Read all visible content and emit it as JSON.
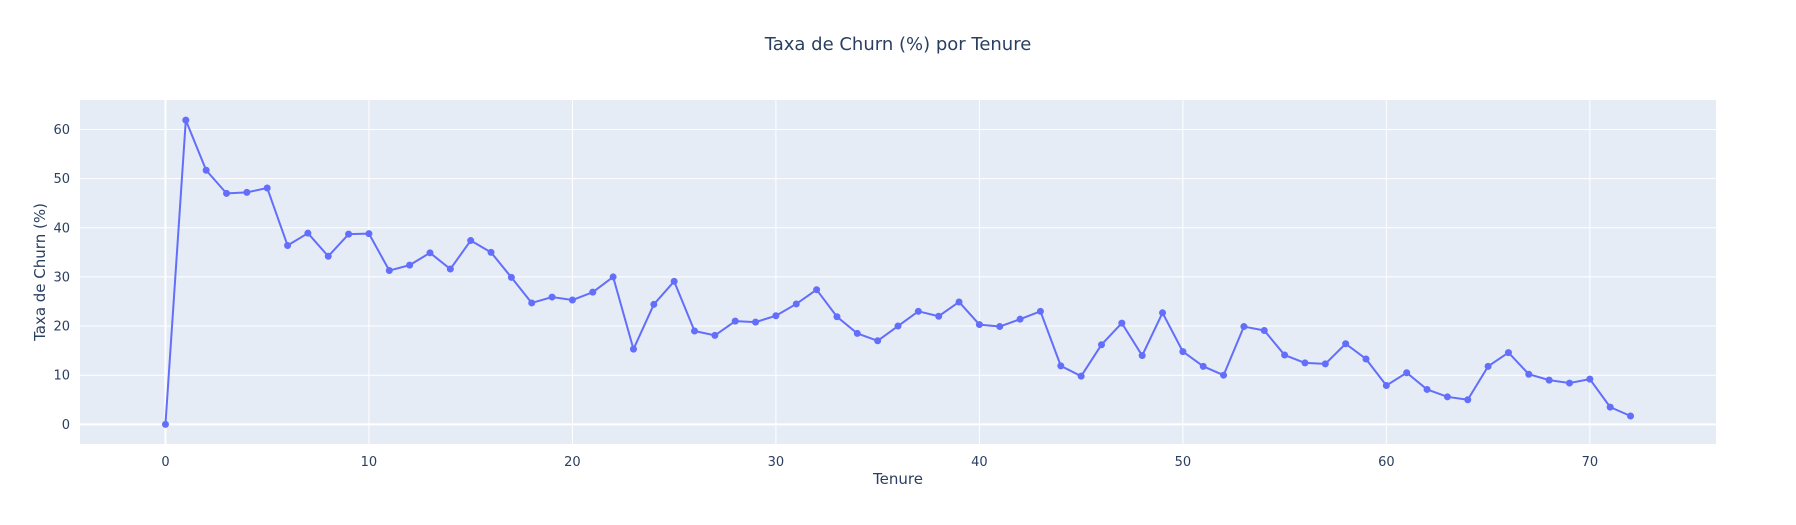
{
  "chart_data": {
    "type": "line",
    "mode": "lines+markers",
    "title": "Taxa de Churn (%) por Tenure",
    "xlabel": "Tenure",
    "ylabel": "Taxa de Churn (%)",
    "xlim": [
      -4.2,
      76.2
    ],
    "ylim": [
      -4,
      66
    ],
    "x_ticks": [
      0,
      10,
      20,
      30,
      40,
      50,
      60,
      70
    ],
    "y_ticks": [
      0,
      10,
      20,
      30,
      40,
      50,
      60
    ],
    "grid": true,
    "legend": "none",
    "colors": {
      "line": "#636efa",
      "plot_bg": "#e5ecf6",
      "grid": "#ffffff",
      "text": "#2a3f5f"
    },
    "series": [
      {
        "x": [
          0,
          1,
          2,
          3,
          4,
          5,
          6,
          7,
          8,
          9,
          10,
          11,
          12,
          13,
          14,
          15,
          16,
          17,
          18,
          19,
          20,
          21,
          22,
          23,
          24,
          25,
          26,
          27,
          28,
          29,
          30,
          31,
          32,
          33,
          34,
          35,
          36,
          37,
          38,
          39,
          40,
          41,
          42,
          43,
          44,
          45,
          46,
          47,
          48,
          49,
          50,
          51,
          52,
          53,
          54,
          55,
          56,
          57,
          58,
          59,
          60,
          61,
          62,
          63,
          64,
          65,
          66,
          67,
          68,
          69,
          70,
          71,
          72
        ],
        "y": [
          0,
          61.9,
          51.7,
          47.0,
          47.2,
          48.1,
          36.4,
          38.9,
          34.2,
          38.7,
          38.8,
          31.3,
          32.4,
          34.9,
          31.6,
          37.4,
          35.0,
          29.9,
          24.7,
          25.9,
          25.3,
          26.9,
          30.0,
          15.3,
          24.4,
          29.1,
          19.0,
          18.1,
          21.0,
          20.8,
          22.1,
          24.5,
          27.4,
          21.9,
          18.5,
          17.0,
          20.0,
          23.0,
          22.0,
          24.9,
          20.3,
          19.9,
          21.4,
          23.0,
          11.9,
          9.8,
          16.2,
          20.6,
          14.0,
          22.7,
          14.8,
          11.8,
          10.0,
          19.9,
          19.1,
          14.1,
          12.5,
          12.3,
          16.4,
          13.3,
          7.9,
          10.5,
          7.1,
          5.6,
          5.0,
          11.8,
          14.6,
          10.2,
          9.0,
          8.4,
          9.2,
          3.5,
          1.7
        ]
      }
    ]
  }
}
